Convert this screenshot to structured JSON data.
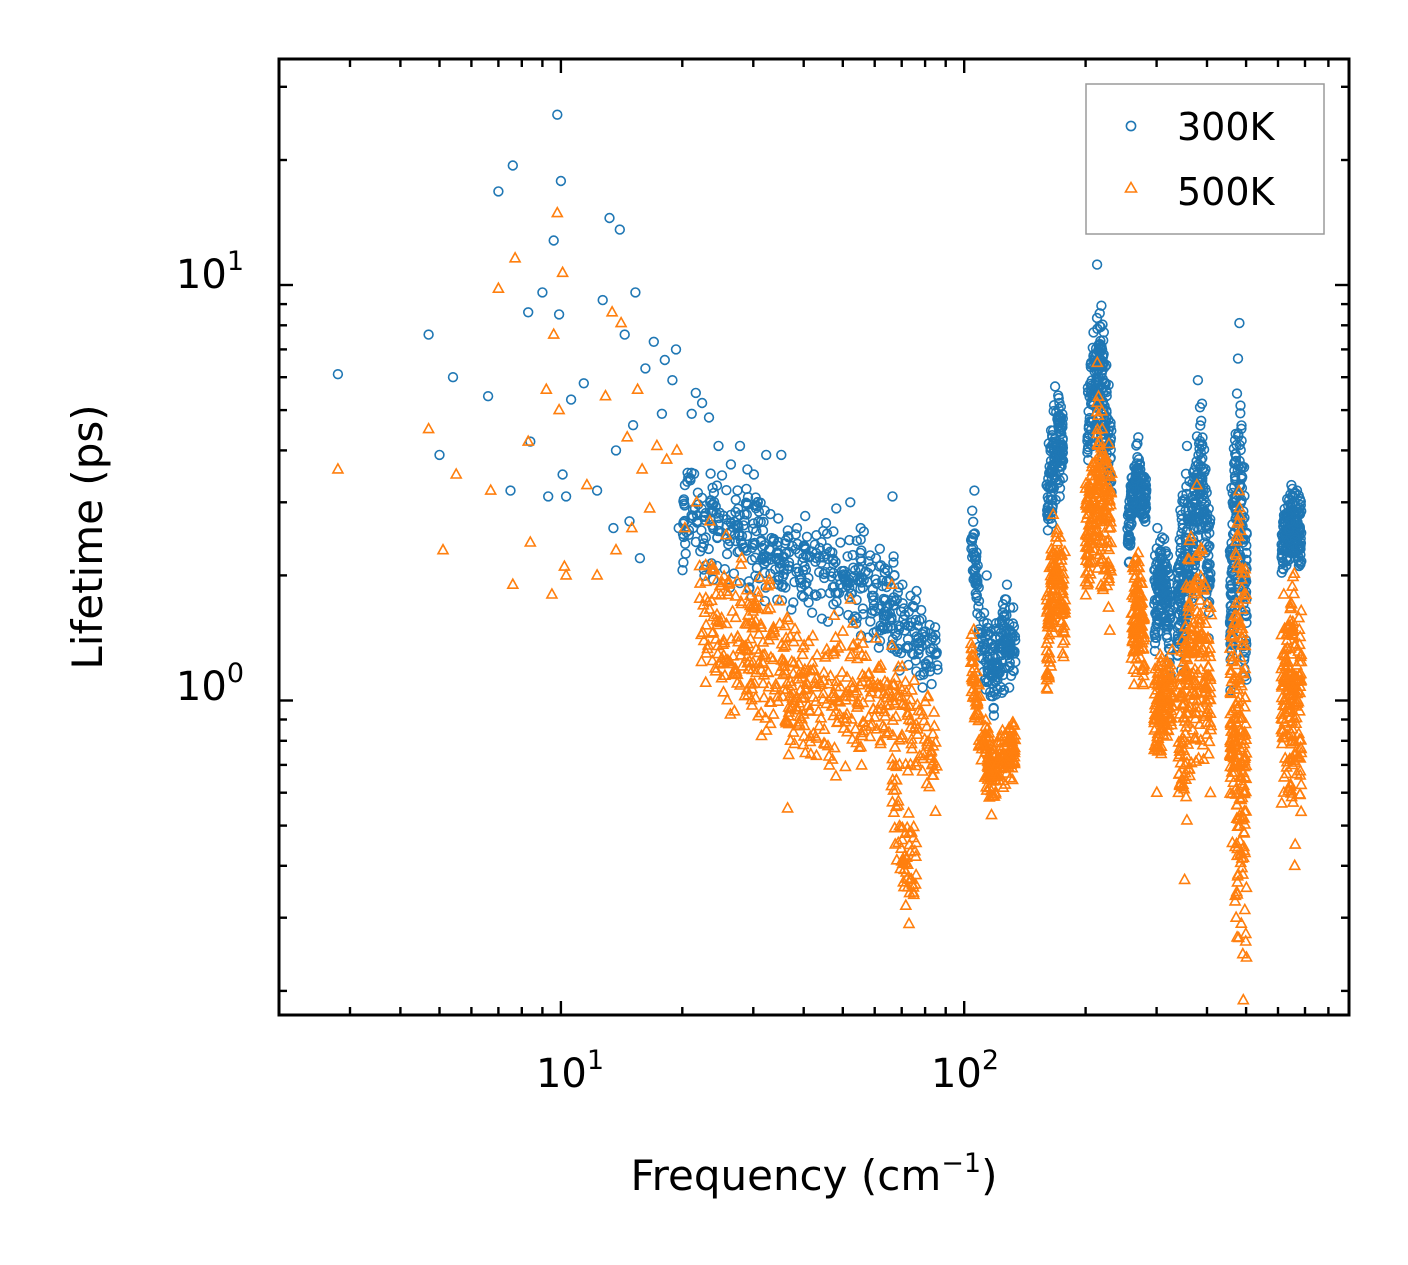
{
  "chart_data": {
    "type": "scatter",
    "xlabel": "Frequency (cm",
    "xlabel_sup": "−1",
    "xlabel_close": ")",
    "ylabel": "Lifetime (ps)",
    "xscale": "log",
    "yscale": "log",
    "xlim": [
      2.0,
      900.0
    ],
    "ylim": [
      0.175,
      35.0
    ],
    "x_ticks": [
      {
        "base": "10",
        "exp": "1",
        "value": 10
      },
      {
        "base": "10",
        "exp": "2",
        "value": 100
      }
    ],
    "y_ticks": [
      {
        "base": "10",
        "exp": "0",
        "value": 1
      },
      {
        "base": "10",
        "exp": "1",
        "value": 10
      }
    ],
    "legend": {
      "position": "top-right",
      "entries": [
        "300K",
        "500K"
      ]
    },
    "series": [
      {
        "name": "300K",
        "marker": "circle",
        "color": "#1f77b4",
        "points": [
          [
            2.8,
            6.1
          ],
          [
            4.7,
            7.6
          ],
          [
            5.0,
            3.9
          ],
          [
            5.4,
            6.0
          ],
          [
            6.6,
            5.4
          ],
          [
            7.0,
            16.8
          ],
          [
            7.5,
            3.2
          ],
          [
            7.6,
            19.4
          ],
          [
            8.3,
            8.6
          ],
          [
            8.4,
            4.2
          ],
          [
            9.0,
            9.6
          ],
          [
            9.3,
            3.1
          ],
          [
            9.6,
            12.8
          ],
          [
            9.8,
            25.7
          ],
          [
            9.9,
            8.5
          ],
          [
            10.0,
            17.8
          ],
          [
            10.1,
            3.5
          ],
          [
            10.3,
            3.1
          ],
          [
            10.6,
            5.3
          ],
          [
            11.4,
            5.8
          ],
          [
            12.3,
            3.2
          ],
          [
            12.7,
            9.2
          ],
          [
            13.2,
            14.5
          ],
          [
            13.5,
            2.6
          ],
          [
            13.7,
            4.0
          ],
          [
            14.0,
            13.6
          ],
          [
            14.4,
            7.6
          ],
          [
            14.8,
            2.7
          ],
          [
            15.1,
            4.6
          ],
          [
            15.3,
            9.6
          ],
          [
            15.7,
            2.2
          ],
          [
            16.2,
            6.3
          ],
          [
            17.0,
            7.3
          ],
          [
            17.8,
            4.9
          ],
          [
            18.1,
            6.6
          ],
          [
            18.9,
            5.9
          ],
          [
            19.3,
            7.0
          ],
          [
            19.6,
            2.6
          ],
          [
            20.3,
            3.3
          ],
          [
            21.1,
            4.9
          ],
          [
            21.6,
            5.5
          ],
          [
            22.4,
            5.2
          ],
          [
            23.3,
            4.8
          ],
          [
            24.6,
            4.1
          ],
          [
            26.4,
            3.7
          ],
          [
            27.8,
            4.1
          ],
          [
            29.0,
            3.6
          ],
          [
            30.1,
            3.5
          ],
          [
            32.3,
            3.9
          ],
          [
            35.2,
            3.9
          ],
          [
            38.5,
            2.6
          ],
          [
            43.0,
            2.5
          ],
          [
            48.2,
            2.9
          ],
          [
            52.2,
            3.0
          ],
          [
            55.4,
            2.6
          ],
          [
            66.4,
            3.1
          ],
          [
            70.3,
            1.9
          ],
          [
            84.7,
            1.5
          ],
          [
            106.0,
            3.2
          ],
          [
            113.7,
            2.0
          ],
          [
            127.7,
            1.9
          ],
          [
            168.1,
            5.7
          ],
          [
            213.6,
            11.2
          ],
          [
            270.3,
            4.3
          ],
          [
            301.4,
            2.6
          ],
          [
            356.8,
            4.1
          ],
          [
            379.9,
            5.9
          ],
          [
            481.4,
            8.1
          ],
          [
            647.7,
            3.3
          ],
          [
            668.7,
            3.2
          ]
        ],
        "clusters": [
          {
            "x_start": 20,
            "x_end": 86,
            "y_lo": [
              2.0,
              1.85,
              1.7,
              1.6,
              1.45,
              1.35,
              1.15,
              0.95
            ],
            "y_hi": [
              4.3,
              3.8,
              3.4,
              2.8,
              2.85,
              2.7,
              2.2,
              1.5
            ],
            "n": 520
          },
          {
            "x_start": 104,
            "x_end": 134,
            "y_lo": [
              2.2,
              1.1,
              0.9,
              1.0,
              1.1
            ],
            "y_hi": [
              3.2,
              1.75,
              1.5,
              1.9,
              1.7
            ],
            "n": 210
          },
          {
            "x_start": 160,
            "x_end": 176,
            "y_lo": [
              1.9,
              2.8,
              3.2
            ],
            "y_hi": [
              3.8,
              5.6,
              5.5
            ],
            "n": 140
          },
          {
            "x_start": 202,
            "x_end": 232,
            "y_lo": [
              3.2,
              4.0,
              2.8
            ],
            "y_hi": [
              5.9,
              11.0,
              4.9
            ],
            "n": 200
          },
          {
            "x_start": 254,
            "x_end": 283,
            "y_lo": [
              1.9,
              3.0,
              2.4
            ],
            "y_hi": [
              3.0,
              4.3,
              3.5
            ],
            "n": 160
          },
          {
            "x_start": 296,
            "x_end": 325,
            "y_lo": [
              1.2,
              1.6,
              1.1
            ],
            "y_hi": [
              2.6,
              2.6,
              2.2
            ],
            "n": 150
          },
          {
            "x_start": 338,
            "x_end": 362,
            "y_lo": [
              1.2,
              1.0,
              1.5
            ],
            "y_hi": [
              2.4,
              4.0,
              3.8
            ],
            "n": 130
          },
          {
            "x_start": 366,
            "x_end": 408,
            "y_lo": [
              1.3,
              2.3,
              1.2
            ],
            "y_hi": [
              3.6,
              5.9,
              3.0
            ],
            "n": 170
          },
          {
            "x_start": 456,
            "x_end": 502,
            "y_lo": [
              0.9,
              1.6,
              0.85
            ],
            "y_hi": [
              2.9,
              8.1,
              3.2
            ],
            "n": 200
          },
          {
            "x_start": 612,
            "x_end": 686,
            "y_lo": [
              1.9,
              2.2,
              2.0
            ],
            "y_hi": [
              2.8,
              3.3,
              3.2
            ],
            "n": 190
          }
        ]
      },
      {
        "name": "500K",
        "marker": "triangle",
        "color": "#ff7f0e",
        "points": [
          [
            2.8,
            3.6
          ],
          [
            4.7,
            4.5
          ],
          [
            5.1,
            2.3
          ],
          [
            5.5,
            3.5
          ],
          [
            6.7,
            3.2
          ],
          [
            7.0,
            9.8
          ],
          [
            7.6,
            1.9
          ],
          [
            7.7,
            11.6
          ],
          [
            8.3,
            4.2
          ],
          [
            8.4,
            2.4
          ],
          [
            9.2,
            5.6
          ],
          [
            9.5,
            1.8
          ],
          [
            9.6,
            7.6
          ],
          [
            9.8,
            14.9
          ],
          [
            9.9,
            5.0
          ],
          [
            10.1,
            10.7
          ],
          [
            10.2,
            2.1
          ],
          [
            10.3,
            2.0
          ],
          [
            11.6,
            3.3
          ],
          [
            12.3,
            2.0
          ],
          [
            12.9,
            5.4
          ],
          [
            13.4,
            8.6
          ],
          [
            13.7,
            2.3
          ],
          [
            14.1,
            8.1
          ],
          [
            14.6,
            4.3
          ],
          [
            15.0,
            2.6
          ],
          [
            15.5,
            5.6
          ],
          [
            15.9,
            3.6
          ],
          [
            16.6,
            2.9
          ],
          [
            17.3,
            4.1
          ],
          [
            18.3,
            3.8
          ],
          [
            19.4,
            4.0
          ],
          [
            20.3,
            2.6
          ],
          [
            21.7,
            3.0
          ],
          [
            23.4,
            2.7
          ],
          [
            25.7,
            2.5
          ],
          [
            28.1,
            2.2
          ],
          [
            33.0,
            1.9
          ],
          [
            36.5,
            0.55
          ],
          [
            47.6,
            1.6
          ],
          [
            52.3,
            1.75
          ],
          [
            66.1,
            1.9
          ],
          [
            73.0,
            0.29
          ],
          [
            74.5,
            0.36
          ],
          [
            84.9,
            0.54
          ],
          [
            116.9,
            0.53
          ],
          [
            166.2,
            2.8
          ],
          [
            213.8,
            6.5
          ],
          [
            269.6,
            2.1
          ],
          [
            300.3,
            0.6
          ],
          [
            352.0,
            0.37
          ],
          [
            377.6,
            3.3
          ],
          [
            472.3,
            0.3
          ],
          [
            492.3,
            0.19
          ],
          [
            660.0,
            0.4
          ],
          [
            662.0,
            0.45
          ]
        ],
        "clusters": [
          {
            "x_start": 22,
            "x_end": 86,
            "y_lo": [
              1.0,
              0.85,
              0.75,
              0.65,
              0.65,
              0.7,
              0.6,
              0.55
            ],
            "y_hi": [
              2.6,
              2.4,
              2.1,
              1.55,
              1.6,
              1.55,
              1.3,
              1.0
            ],
            "n": 520
          },
          {
            "x_start": 66,
            "x_end": 76,
            "y_lo": [
              0.45,
              0.32,
              0.3
            ],
            "y_hi": [
              0.9,
              0.6,
              0.5
            ],
            "n": 60
          },
          {
            "x_start": 104,
            "x_end": 134,
            "y_lo": [
              1.0,
              0.6,
              0.55,
              0.6,
              0.65
            ],
            "y_hi": [
              1.7,
              1.0,
              0.8,
              0.9,
              0.95
            ],
            "n": 210
          },
          {
            "x_start": 160,
            "x_end": 178,
            "y_lo": [
              0.9,
              1.5,
              1.1
            ],
            "y_hi": [
              1.9,
              2.9,
              2.5
            ],
            "n": 140
          },
          {
            "x_start": 200,
            "x_end": 232,
            "y_lo": [
              1.6,
              1.9,
              1.3
            ],
            "y_hi": [
              3.5,
              6.0,
              4.3
            ],
            "n": 200
          },
          {
            "x_start": 260,
            "x_end": 280,
            "y_lo": [
              0.95,
              1.1,
              1.0
            ],
            "y_hi": [
              2.2,
              2.5,
              2.0
            ],
            "n": 120
          },
          {
            "x_start": 296,
            "x_end": 330,
            "y_lo": [
              0.62,
              0.75,
              0.8
            ],
            "y_hi": [
              1.4,
              1.3,
              1.4
            ],
            "n": 140
          },
          {
            "x_start": 340,
            "x_end": 410,
            "y_lo": [
              0.4,
              0.5,
              0.65,
              0.5
            ],
            "y_hi": [
              1.5,
              2.8,
              3.1,
              1.8
            ],
            "n": 230
          },
          {
            "x_start": 456,
            "x_end": 502,
            "y_lo": [
              0.5,
              0.22,
              0.2
            ],
            "y_hi": [
              1.4,
              4.6,
              3.0
            ],
            "n": 220
          },
          {
            "x_start": 612,
            "x_end": 686,
            "y_lo": [
              0.5,
              0.55,
              0.5
            ],
            "y_hi": [
              2.0,
              2.2,
              1.8
            ],
            "n": 190
          }
        ]
      }
    ]
  }
}
